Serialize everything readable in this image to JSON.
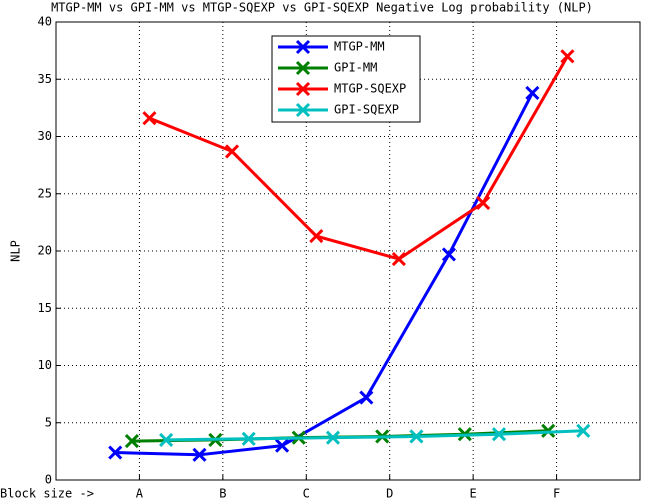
{
  "chart_data": {
    "type": "line",
    "title": "MTGP-MM vs GPI-MM vs MTGP-SQEXP vs GPI-SQEXP Negative Log probability (NLP)",
    "y_label": "NLP",
    "x_label": "Block size ->",
    "xlim": [
      0,
      7
    ],
    "xticks": [
      {
        "value": 1,
        "label": "A"
      },
      {
        "value": 2,
        "label": "B"
      },
      {
        "value": 3,
        "label": "C"
      },
      {
        "value": 4,
        "label": "D"
      },
      {
        "value": 5,
        "label": "E"
      },
      {
        "value": 6,
        "label": "F"
      }
    ],
    "ylim": [
      0,
      40
    ],
    "yticks": [
      0,
      5,
      10,
      15,
      20,
      25,
      30,
      35,
      40
    ],
    "grid": true,
    "legend": "top",
    "series": [
      {
        "name": "MTGP-MM",
        "color": "#0000ff",
        "x": [
          0.71,
          1.72,
          2.71,
          3.72,
          4.71,
          5.71
        ],
        "values": [
          2.4,
          2.2,
          3.0,
          7.2,
          19.7,
          33.8
        ]
      },
      {
        "name": "GPI-MM",
        "color": "#008000",
        "x": [
          0.91,
          1.91,
          2.91,
          3.91,
          4.9,
          5.9
        ],
        "values": [
          3.4,
          3.5,
          3.7,
          3.8,
          4.0,
          4.3
        ]
      },
      {
        "name": "MTGP-SQEXP",
        "color": "#ff0000",
        "x": [
          1.12,
          2.11,
          3.12,
          4.11,
          5.12,
          6.13
        ],
        "values": [
          31.6,
          28.7,
          21.3,
          19.3,
          24.2,
          37.0
        ]
      },
      {
        "name": "GPI-SQEXP",
        "color": "#00bfbf",
        "x": [
          1.32,
          2.31,
          3.32,
          4.32,
          5.31,
          6.32
        ],
        "values": [
          3.5,
          3.6,
          3.7,
          3.8,
          4.0,
          4.3
        ]
      }
    ]
  }
}
